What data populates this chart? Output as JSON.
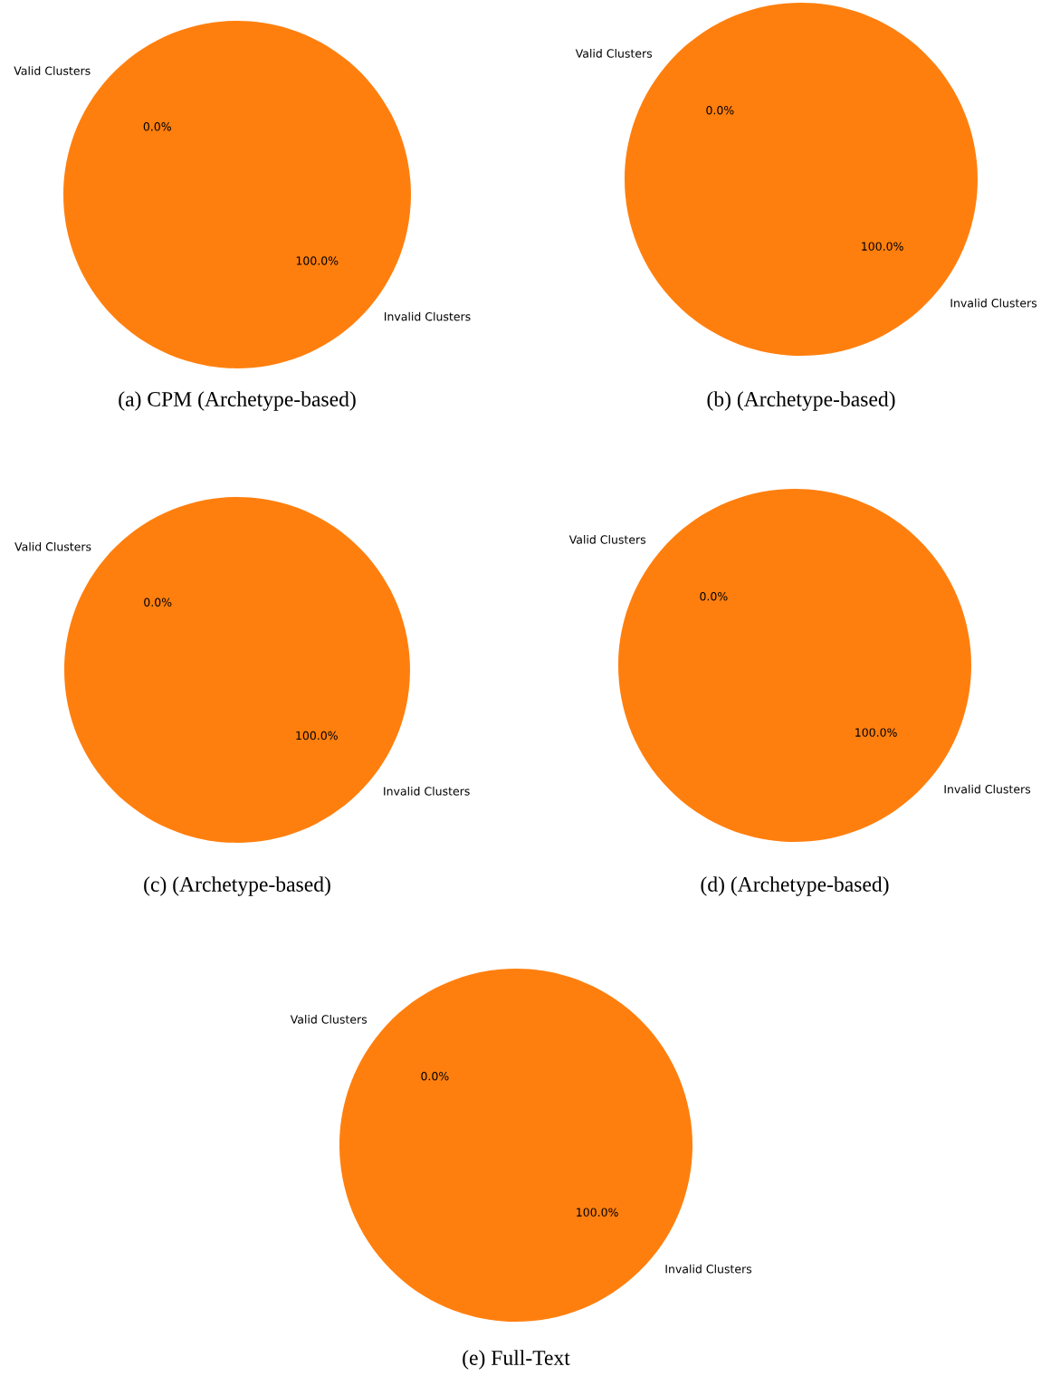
{
  "chart_data": [
    {
      "type": "pie",
      "title": "(a) CPM (Archetype-based)",
      "categories": [
        "Valid Clusters",
        "Invalid Clusters"
      ],
      "values": [
        0,
        100
      ],
      "colors": [
        "#1f77b4",
        "#ff7f0e"
      ],
      "value_labels": [
        "0.0%",
        "100.0%"
      ]
    },
    {
      "type": "pie",
      "title": "(b) (Archetype-based)",
      "categories": [
        "Valid Clusters",
        "Invalid Clusters"
      ],
      "values": [
        0,
        100
      ],
      "colors": [
        "#1f77b4",
        "#ff7f0e"
      ],
      "value_labels": [
        "0.0%",
        "100.0%"
      ]
    },
    {
      "type": "pie",
      "title": "(c) (Archetype-based)",
      "categories": [
        "Valid Clusters",
        "Invalid Clusters"
      ],
      "values": [
        0,
        100
      ],
      "colors": [
        "#1f77b4",
        "#ff7f0e"
      ],
      "value_labels": [
        "0.0%",
        "100.0%"
      ]
    },
    {
      "type": "pie",
      "title": "(d) (Archetype-based)",
      "categories": [
        "Valid Clusters",
        "Invalid Clusters"
      ],
      "values": [
        0,
        100
      ],
      "colors": [
        "#1f77b4",
        "#ff7f0e"
      ],
      "value_labels": [
        "0.0%",
        "100.0%"
      ]
    },
    {
      "type": "pie",
      "title": "(e) Full-Text",
      "categories": [
        "Valid Clusters",
        "Invalid Clusters"
      ],
      "values": [
        0,
        100
      ],
      "colors": [
        "#1f77b4",
        "#ff7f0e"
      ],
      "value_labels": [
        "0.0%",
        "100.0%"
      ]
    }
  ]
}
